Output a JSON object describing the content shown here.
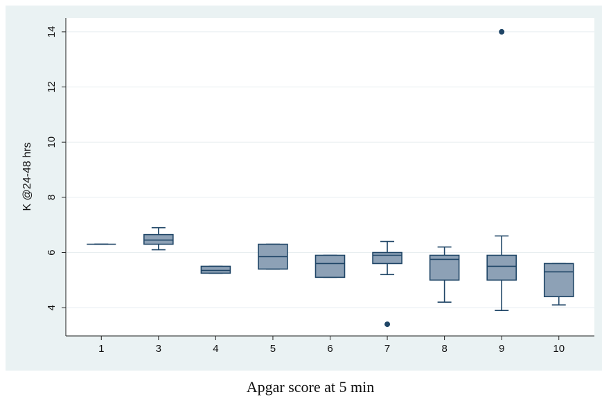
{
  "chart_data": {
    "type": "box",
    "y_label": "K @24-48 hrs",
    "x_label": "Apgar score at 5 min",
    "categories": [
      "1",
      "3",
      "4",
      "5",
      "6",
      "7",
      "8",
      "9",
      "10"
    ],
    "boxes": [
      {
        "min": 6.3,
        "q1": 6.3,
        "median": 6.3,
        "q3": 6.3,
        "max": 6.3,
        "outliers": []
      },
      {
        "min": 6.1,
        "q1": 6.3,
        "median": 6.45,
        "q3": 6.65,
        "max": 6.9,
        "outliers": []
      },
      {
        "min": 5.25,
        "q1": 5.25,
        "median": 5.35,
        "q3": 5.5,
        "max": 5.5,
        "outliers": []
      },
      {
        "min": 5.4,
        "q1": 5.4,
        "median": 5.85,
        "q3": 6.3,
        "max": 6.3,
        "outliers": []
      },
      {
        "min": 5.1,
        "q1": 5.1,
        "median": 5.6,
        "q3": 5.9,
        "max": 5.9,
        "outliers": []
      },
      {
        "min": 5.2,
        "q1": 5.6,
        "median": 5.9,
        "q3": 6.0,
        "max": 6.4,
        "outliers": [
          3.4
        ]
      },
      {
        "min": 4.2,
        "q1": 5.0,
        "median": 5.75,
        "q3": 5.9,
        "max": 6.2,
        "outliers": []
      },
      {
        "min": 3.9,
        "q1": 5.0,
        "median": 5.5,
        "q3": 5.9,
        "max": 6.6,
        "outliers": [
          14
        ]
      },
      {
        "min": 4.1,
        "q1": 4.4,
        "median": 5.3,
        "q3": 5.6,
        "max": 5.6,
        "outliers": []
      }
    ],
    "color": "#8da1b6",
    "edge_color": "#1f4566",
    "ylim": [
      3,
      14.5
    ],
    "yticks": [
      4,
      6,
      8,
      10,
      12,
      14
    ],
    "grid": true
  }
}
